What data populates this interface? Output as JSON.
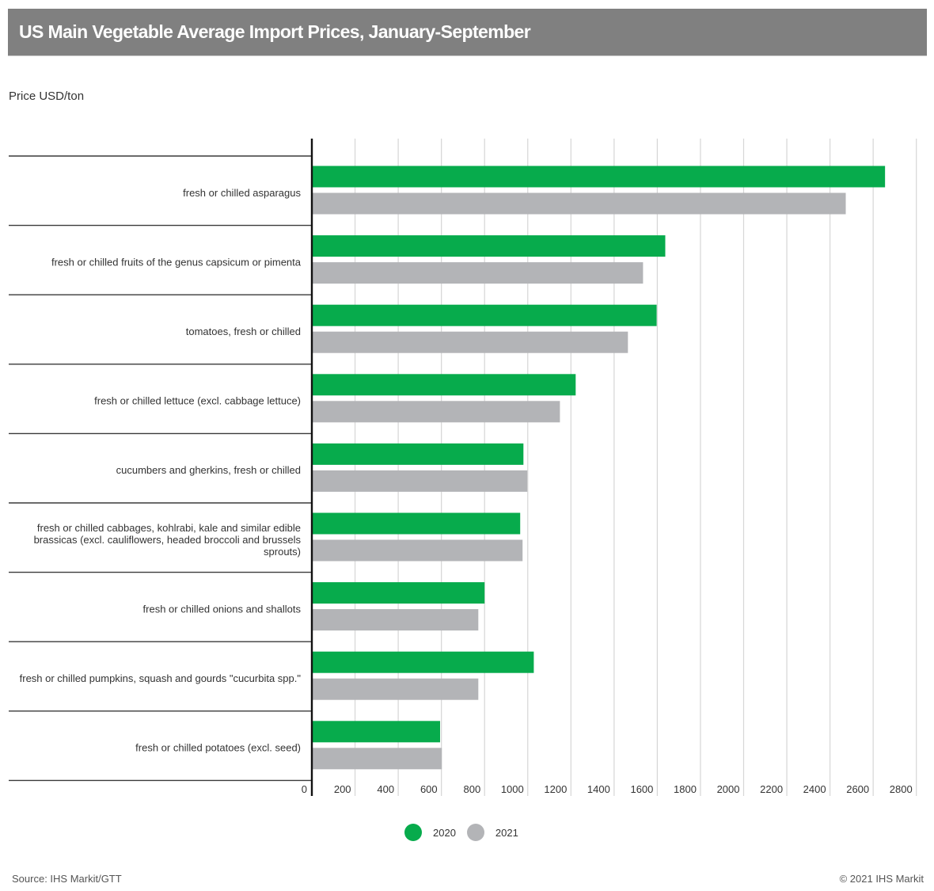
{
  "header": {
    "title": "US Main Vegetable Average Import Prices, January-September"
  },
  "unit_label": "Price USD/ton",
  "colors": {
    "series_2020": "#07ab4c",
    "series_2021": "#b3b4b7",
    "title_bg": "#808080"
  },
  "chart_data": {
    "type": "bar",
    "orientation": "horizontal",
    "title": "US Main Vegetable Average Import Prices, January-September",
    "xlabel": "",
    "ylabel": "Price USD/ton",
    "xlim": [
      0,
      2800
    ],
    "xticks": [
      0,
      200,
      400,
      600,
      800,
      1000,
      1200,
      1400,
      1600,
      1800,
      2000,
      2200,
      2400,
      2600,
      2800
    ],
    "grid": true,
    "legend_position": "bottom-center",
    "categories": [
      "fresh or chilled asparagus",
      "fresh or chilled fruits of the genus capsicum or pimenta",
      "tomatoes, fresh or chilled",
      "fresh or chilled lettuce (excl. cabbage lettuce)",
      "cucumbers and gherkins, fresh or chilled",
      "fresh or chilled cabbages, kohlrabi, kale and similar edible brassicas (excl. cauliflowers, headed broccoli and brussels sprouts)",
      "fresh or chilled onions and shallots",
      "fresh or chilled pumpkins, squash and gourds \"cucurbita spp.\"",
      "fresh or chilled potatoes (excl. seed)"
    ],
    "category_label_lines": [
      [
        "fresh or chilled asparagus"
      ],
      [
        "fresh or chilled fruits of the genus capsicum or pimenta"
      ],
      [
        "tomatoes, fresh or chilled"
      ],
      [
        "fresh or chilled lettuce (excl. cabbage lettuce)"
      ],
      [
        "cucumbers and gherkins, fresh or chilled"
      ],
      [
        "fresh or chilled cabbages, kohlrabi, kale and similar edible",
        "brassicas (excl. cauliflowers, headed broccoli and brussels",
        "sprouts)"
      ],
      [
        "fresh or chilled onions and shallots"
      ],
      [
        "fresh or chilled pumpkins, squash and gourds \"cucurbita spp.\""
      ],
      [
        "fresh or chilled potatoes (excl. seed)"
      ]
    ],
    "series": [
      {
        "name": "2020",
        "color": "#07ab4c",
        "values": [
          2655,
          1637,
          1597,
          1222,
          980,
          965,
          800,
          1028,
          594
        ]
      },
      {
        "name": "2021",
        "color": "#b3b4b7",
        "values": [
          2473,
          1534,
          1464,
          1149,
          998,
          976,
          771,
          771,
          602
        ]
      }
    ]
  },
  "legend": [
    {
      "label": "2020",
      "color": "#07ab4c"
    },
    {
      "label": "2021",
      "color": "#b3b4b7"
    }
  ],
  "footer": {
    "source": "Source: IHS Markit/GTT",
    "copyright": "© 2021 IHS Markit"
  }
}
